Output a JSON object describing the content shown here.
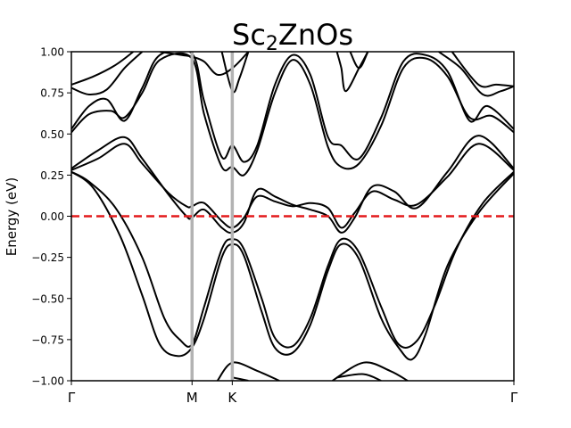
{
  "chart_data": {
    "type": "line",
    "title_main": "Sc",
    "title_sub": "2",
    "title_rest": "ZnOs",
    "ylabel": "Energy (eV)",
    "xlabel": "",
    "ylim": [
      -1.0,
      1.0
    ],
    "yticks": [
      -1.0,
      -0.75,
      -0.5,
      -0.25,
      0.0,
      0.25,
      0.5,
      0.75,
      1.0
    ],
    "ytick_labels": [
      "−1.00",
      "−0.75",
      "−0.50",
      "−0.25",
      "0.00",
      "0.25",
      "0.50",
      "0.75",
      "1.00"
    ],
    "kpoints": [
      {
        "label": "Γ",
        "x": 0.0
      },
      {
        "label": "M",
        "x": 0.2727
      },
      {
        "label": "K",
        "x": 0.3636
      },
      {
        "label": "Γ",
        "x": 1.0
      }
    ],
    "fermi_level": 0.0,
    "colors": {
      "bands": "#000000",
      "fermi": "#e31a1c",
      "kline": "#b3b3b3"
    },
    "series": [
      {
        "points": [
          [
            0.0,
            0.27
          ],
          [
            0.04,
            0.21
          ],
          [
            0.1,
            0.05
          ],
          [
            0.16,
            -0.25
          ],
          [
            0.21,
            -0.62
          ],
          [
            0.245,
            -0.75
          ],
          [
            0.272,
            -0.78
          ],
          [
            0.3,
            -0.55
          ],
          [
            0.34,
            -0.2
          ],
          [
            0.364,
            -0.14
          ],
          [
            0.39,
            -0.2
          ],
          [
            0.43,
            -0.5
          ],
          [
            0.46,
            -0.74
          ],
          [
            0.5,
            -0.79
          ],
          [
            0.54,
            -0.62
          ],
          [
            0.58,
            -0.3
          ],
          [
            0.61,
            -0.14
          ],
          [
            0.65,
            -0.22
          ],
          [
            0.7,
            -0.55
          ],
          [
            0.74,
            -0.78
          ],
          [
            0.78,
            -0.76
          ],
          [
            0.82,
            -0.55
          ],
          [
            0.87,
            -0.2
          ],
          [
            0.93,
            0.08
          ],
          [
            1.0,
            0.27
          ]
        ]
      },
      {
        "points": [
          [
            0.0,
            0.27
          ],
          [
            0.05,
            0.17
          ],
          [
            0.11,
            -0.12
          ],
          [
            0.16,
            -0.48
          ],
          [
            0.2,
            -0.78
          ],
          [
            0.24,
            -0.85
          ],
          [
            0.272,
            -0.8
          ],
          [
            0.3,
            -0.62
          ],
          [
            0.34,
            -0.25
          ],
          [
            0.364,
            -0.17
          ],
          [
            0.39,
            -0.24
          ],
          [
            0.43,
            -0.58
          ],
          [
            0.46,
            -0.8
          ],
          [
            0.5,
            -0.83
          ],
          [
            0.54,
            -0.66
          ],
          [
            0.58,
            -0.33
          ],
          [
            0.61,
            -0.17
          ],
          [
            0.65,
            -0.26
          ],
          [
            0.7,
            -0.62
          ],
          [
            0.74,
            -0.8
          ],
          [
            0.77,
            -0.87
          ],
          [
            0.8,
            -0.72
          ],
          [
            0.85,
            -0.3
          ],
          [
            0.92,
            0.02
          ],
          [
            1.0,
            0.26
          ]
        ]
      },
      {
        "points": [
          [
            0.0,
            0.28
          ],
          [
            0.06,
            0.35
          ],
          [
            0.12,
            0.44
          ],
          [
            0.16,
            0.32
          ],
          [
            0.22,
            0.14
          ],
          [
            0.26,
            0.06
          ],
          [
            0.272,
            0.06
          ],
          [
            0.3,
            0.08
          ],
          [
            0.34,
            -0.03
          ],
          [
            0.364,
            -0.07
          ],
          [
            0.39,
            -0.01
          ],
          [
            0.42,
            0.12
          ],
          [
            0.46,
            0.09
          ],
          [
            0.5,
            0.06
          ],
          [
            0.54,
            0.08
          ],
          [
            0.58,
            0.05
          ],
          [
            0.61,
            -0.07
          ],
          [
            0.64,
            0.02
          ],
          [
            0.68,
            0.15
          ],
          [
            0.73,
            0.1
          ],
          [
            0.78,
            0.07
          ],
          [
            0.85,
            0.24
          ],
          [
            0.92,
            0.44
          ],
          [
            1.0,
            0.28
          ]
        ]
      },
      {
        "points": [
          [
            0.0,
            0.29
          ],
          [
            0.06,
            0.4
          ],
          [
            0.12,
            0.48
          ],
          [
            0.16,
            0.35
          ],
          [
            0.22,
            0.13
          ],
          [
            0.26,
            0.0
          ],
          [
            0.272,
            -0.01
          ],
          [
            0.3,
            0.04
          ],
          [
            0.34,
            -0.07
          ],
          [
            0.364,
            -0.1
          ],
          [
            0.39,
            -0.04
          ],
          [
            0.42,
            0.16
          ],
          [
            0.46,
            0.12
          ],
          [
            0.5,
            0.07
          ],
          [
            0.54,
            0.04
          ],
          [
            0.58,
            0.0
          ],
          [
            0.61,
            -0.1
          ],
          [
            0.64,
            -0.01
          ],
          [
            0.68,
            0.18
          ],
          [
            0.73,
            0.15
          ],
          [
            0.78,
            0.05
          ],
          [
            0.85,
            0.27
          ],
          [
            0.92,
            0.49
          ],
          [
            1.0,
            0.29
          ]
        ]
      },
      {
        "points": [
          [
            0.0,
            0.51
          ],
          [
            0.04,
            0.62
          ],
          [
            0.09,
            0.64
          ],
          [
            0.12,
            0.6
          ],
          [
            0.16,
            0.75
          ],
          [
            0.2,
            0.95
          ],
          [
            0.272,
            0.96
          ],
          [
            0.3,
            0.62
          ],
          [
            0.34,
            0.3
          ],
          [
            0.364,
            0.3
          ],
          [
            0.39,
            0.25
          ],
          [
            0.42,
            0.4
          ],
          [
            0.46,
            0.75
          ],
          [
            0.5,
            0.95
          ],
          [
            0.54,
            0.8
          ],
          [
            0.58,
            0.42
          ],
          [
            0.61,
            0.3
          ],
          [
            0.65,
            0.32
          ],
          [
            0.7,
            0.55
          ],
          [
            0.75,
            0.9
          ],
          [
            0.8,
            0.96
          ],
          [
            0.85,
            0.85
          ],
          [
            0.9,
            0.6
          ],
          [
            0.95,
            0.61
          ],
          [
            1.0,
            0.51
          ]
        ]
      },
      {
        "points": [
          [
            0.0,
            0.53
          ],
          [
            0.04,
            0.67
          ],
          [
            0.08,
            0.71
          ],
          [
            0.12,
            0.58
          ],
          [
            0.16,
            0.78
          ],
          [
            0.2,
            0.98
          ],
          [
            0.272,
            0.99
          ],
          [
            0.3,
            0.7
          ],
          [
            0.34,
            0.36
          ],
          [
            0.364,
            0.43
          ],
          [
            0.39,
            0.33
          ],
          [
            0.42,
            0.43
          ],
          [
            0.46,
            0.8
          ],
          [
            0.5,
            0.98
          ],
          [
            0.54,
            0.86
          ],
          [
            0.58,
            0.48
          ],
          [
            0.61,
            0.43
          ],
          [
            0.65,
            0.35
          ],
          [
            0.7,
            0.6
          ],
          [
            0.75,
            0.94
          ],
          [
            0.8,
            0.98
          ],
          [
            0.85,
            0.88
          ],
          [
            0.9,
            0.58
          ],
          [
            0.94,
            0.67
          ],
          [
            1.0,
            0.53
          ]
        ]
      },
      {
        "points": [
          [
            0.0,
            0.78
          ],
          [
            0.04,
            0.74
          ],
          [
            0.08,
            0.77
          ],
          [
            0.12,
            0.9
          ],
          [
            0.16,
            1.0
          ]
        ]
      },
      {
        "points": [
          [
            0.0,
            0.8
          ],
          [
            0.05,
            0.85
          ],
          [
            0.1,
            0.92
          ],
          [
            0.14,
            1.0
          ]
        ]
      },
      {
        "points": [
          [
            0.2,
            1.0
          ],
          [
            0.25,
            0.98
          ],
          [
            0.272,
            0.97
          ],
          [
            0.3,
            0.94
          ],
          [
            0.33,
            0.86
          ],
          [
            0.364,
            0.9
          ],
          [
            0.4,
            1.0
          ]
        ]
      },
      {
        "points": [
          [
            0.34,
            1.0
          ],
          [
            0.364,
            0.76
          ],
          [
            0.38,
            0.84
          ],
          [
            0.4,
            1.0
          ]
        ]
      },
      {
        "points": [
          [
            0.6,
            1.0
          ],
          [
            0.61,
            0.9
          ],
          [
            0.62,
            0.76
          ],
          [
            0.65,
            0.9
          ],
          [
            0.67,
            1.0
          ]
        ]
      },
      {
        "points": [
          [
            0.63,
            1.0
          ],
          [
            0.65,
            0.9
          ],
          [
            0.67,
            1.0
          ]
        ]
      },
      {
        "points": [
          [
            0.83,
            1.0
          ],
          [
            0.88,
            0.9
          ],
          [
            0.93,
            0.74
          ],
          [
            0.97,
            0.76
          ],
          [
            1.0,
            0.79
          ]
        ]
      },
      {
        "points": [
          [
            0.86,
            1.0
          ],
          [
            0.92,
            0.8
          ],
          [
            0.96,
            0.8
          ],
          [
            1.0,
            0.79
          ]
        ]
      },
      {
        "points": [
          [
            0.33,
            -1.0
          ],
          [
            0.364,
            -0.89
          ],
          [
            0.42,
            -0.94
          ],
          [
            0.47,
            -1.0
          ]
        ]
      },
      {
        "points": [
          [
            0.59,
            -1.0
          ],
          [
            0.66,
            -0.89
          ],
          [
            0.72,
            -0.94
          ],
          [
            0.76,
            -1.0
          ]
        ]
      },
      {
        "points": [
          [
            0.364,
            -0.98
          ],
          [
            0.4,
            -1.0
          ]
        ]
      },
      {
        "points": [
          [
            0.6,
            -0.98
          ],
          [
            0.66,
            -0.96
          ],
          [
            0.7,
            -1.0
          ]
        ]
      }
    ]
  }
}
